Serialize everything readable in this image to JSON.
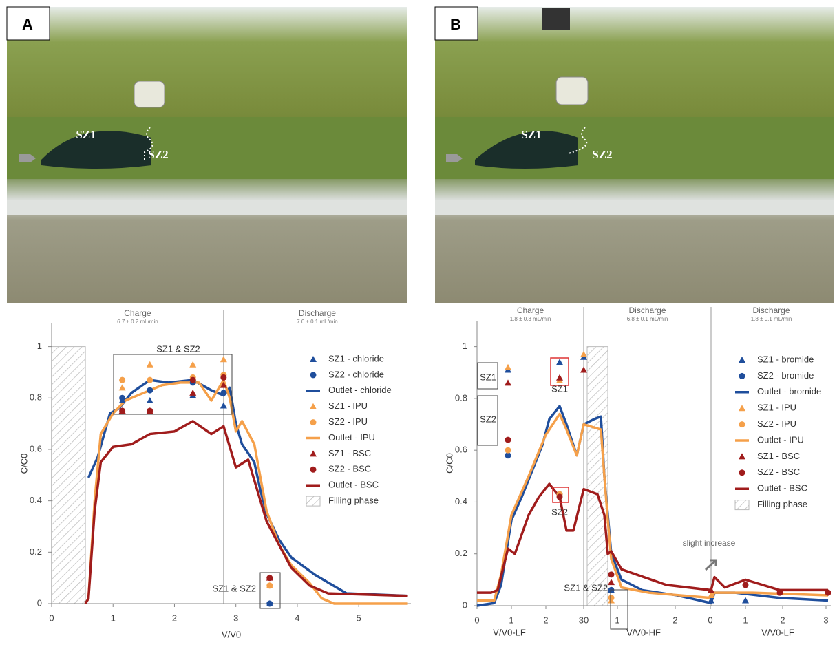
{
  "figure": {
    "panels": [
      {
        "label": "A",
        "zones": [
          "SZ1",
          "SZ2"
        ]
      },
      {
        "label": "B",
        "zones": [
          "SZ1",
          "SZ2"
        ]
      }
    ]
  },
  "chart_data": [
    {
      "type": "line",
      "xlabel": "V/V0",
      "ylabel": "C/C0",
      "xlim": [
        0,
        5.85
      ],
      "ylim": [
        0,
        1.09
      ],
      "xticks": [
        0,
        1,
        2,
        3,
        4,
        5
      ],
      "yticks": [
        0,
        0.2,
        0.4,
        0.6,
        0.8,
        1
      ],
      "phases": [
        {
          "name": "Charge",
          "rate": "6.7 ± 0.2 mL/min",
          "range": [
            0,
            2.8
          ]
        },
        {
          "name": "Discharge",
          "rate": "7.0 ± 0.1 mL/min",
          "range": [
            2.8,
            5.85
          ]
        }
      ],
      "filling_phase": [
        0,
        0.55
      ],
      "filling_label": "Filling phase",
      "annotations": [
        "SZ1 & SZ2",
        "SZ1 & SZ2"
      ],
      "series": [
        {
          "name": "SZ1 - chloride",
          "color": "#1f4e9c",
          "marker": "triangle",
          "x": [
            1.15,
            1.6,
            2.3,
            2.8,
            3.55
          ],
          "values": [
            0.79,
            0.79,
            0.81,
            0.77,
            0
          ]
        },
        {
          "name": "SZ2 - chloride",
          "color": "#1f4e9c",
          "marker": "circle",
          "x": [
            1.15,
            1.6,
            2.3,
            2.8,
            3.55
          ],
          "values": [
            0.8,
            0.83,
            0.86,
            0.82,
            0
          ]
        },
        {
          "name": "Outlet - chloride",
          "color": "#1f4e9c",
          "marker": "line",
          "x": [
            0.6,
            0.75,
            0.95,
            1.1,
            1.3,
            1.6,
            1.9,
            2.3,
            2.6,
            2.8,
            2.9,
            3.0,
            3.1,
            3.3,
            3.4,
            3.5,
            3.7,
            3.9,
            4.3,
            4.8,
            5.8
          ],
          "values": [
            0.49,
            0.57,
            0.74,
            0.76,
            0.82,
            0.87,
            0.86,
            0.87,
            0.83,
            0.81,
            0.84,
            0.7,
            0.62,
            0.55,
            0.44,
            0.35,
            0.25,
            0.18,
            0.11,
            0.04,
            0.03
          ]
        },
        {
          "name": "SZ1 - IPU",
          "color": "#f5a04a",
          "marker": "triangle",
          "x": [
            1.15,
            1.6,
            2.3,
            2.8,
            3.55
          ],
          "values": [
            0.84,
            0.93,
            0.93,
            0.95,
            0.07
          ]
        },
        {
          "name": "SZ2 - IPU",
          "color": "#f5a04a",
          "marker": "circle",
          "x": [
            1.15,
            1.6,
            2.3,
            2.8,
            3.55
          ],
          "values": [
            0.87,
            0.87,
            0.88,
            0.89,
            0.07
          ]
        },
        {
          "name": "Outlet - IPU",
          "color": "#f5a04a",
          "marker": "line",
          "x": [
            0.55,
            0.6,
            0.7,
            0.8,
            1.0,
            1.2,
            1.5,
            1.8,
            2.1,
            2.4,
            2.6,
            2.8,
            2.9,
            3.0,
            3.1,
            3.3,
            3.5,
            3.7,
            3.9,
            4.2,
            4.4,
            4.6,
            5.8
          ],
          "values": [
            0,
            0.02,
            0.4,
            0.66,
            0.74,
            0.79,
            0.82,
            0.85,
            0.86,
            0.86,
            0.79,
            0.87,
            0.8,
            0.67,
            0.71,
            0.62,
            0.36,
            0.23,
            0.15,
            0.08,
            0.02,
            0,
            0
          ]
        },
        {
          "name": "SZ1 - BSC",
          "color": "#a01c1c",
          "marker": "triangle",
          "x": [
            1.15,
            1.6,
            2.3,
            2.8,
            3.55
          ],
          "values": [
            0.75,
            0.75,
            0.82,
            0.85,
            0.1
          ]
        },
        {
          "name": "SZ2 - BSC",
          "color": "#a01c1c",
          "marker": "circle",
          "x": [
            1.15,
            1.6,
            2.3,
            2.8,
            3.55
          ],
          "values": [
            0.75,
            0.75,
            0.87,
            0.88,
            0.1
          ]
        },
        {
          "name": "Outlet - BSC",
          "color": "#a01c1c",
          "marker": "line",
          "x": [
            0.55,
            0.6,
            0.7,
            0.8,
            1.0,
            1.3,
            1.6,
            2.0,
            2.3,
            2.6,
            2.8,
            3.0,
            3.2,
            3.3,
            3.5,
            3.7,
            3.9,
            4.2,
            4.5,
            5.8
          ],
          "values": [
            0,
            0.02,
            0.36,
            0.55,
            0.61,
            0.62,
            0.66,
            0.67,
            0.71,
            0.66,
            0.69,
            0.53,
            0.56,
            0.48,
            0.32,
            0.23,
            0.14,
            0.07,
            0.04,
            0.03
          ]
        }
      ]
    },
    {
      "type": "line",
      "xlabels": [
        "V/V0-LF",
        "V/V0-HF",
        "V/V0-LF"
      ],
      "ylabel": "C/C0",
      "xlim": [
        0,
        10.3
      ],
      "ylim": [
        0,
        1.1
      ],
      "xticks": [
        0,
        1,
        2,
        {
          "value": 3.1,
          "label": "30"
        },
        {
          "value": 4.08,
          "label": "1"
        },
        {
          "value": 5.76,
          "label": "2"
        },
        {
          "value": 6.78,
          "label": "0"
        },
        {
          "value": 7.8,
          "label": "1"
        },
        {
          "value": 8.88,
          "label": "2"
        },
        {
          "value": 10.14,
          "label": "3"
        }
      ],
      "yticks": [
        0,
        0.2,
        0.4,
        0.6,
        0.8,
        1
      ],
      "phases": [
        {
          "name": "Charge",
          "rate": "1.8 ± 0.3 mL/min",
          "range": [
            0,
            3.1
          ]
        },
        {
          "name": "Discharge",
          "rate": "6.8 ± 0.1 mL/min",
          "range": [
            3.1,
            6.8
          ]
        },
        {
          "name": "Discharge",
          "rate": "1.8 ± 0.1 mL/min",
          "range": [
            6.8,
            10.3
          ]
        }
      ],
      "filling_phase": [
        3.2,
        3.8
      ],
      "filling_label": "Filling phase",
      "annotations": [
        "SZ1",
        "SZ2",
        "SZ1",
        "SZ2",
        "SZ1 & SZ2",
        "slight increase"
      ],
      "series": [
        {
          "name": "SZ1 - bromide",
          "color": "#1f4e9c",
          "marker": "triangle",
          "x": [
            0.9,
            2.4,
            3.1,
            3.9,
            6.8,
            7.8
          ],
          "values": [
            0.91,
            0.94,
            0.96,
            0.06,
            0.02,
            0.02
          ]
        },
        {
          "name": "SZ2 - bromide",
          "color": "#1f4e9c",
          "marker": "circle",
          "x": [
            0.9,
            2.4,
            3.9
          ],
          "values": [
            0.58,
            0.43,
            0.06
          ]
        },
        {
          "name": "Outlet - bromide",
          "color": "#1f4e9c",
          "marker": "line",
          "x": [
            0,
            0.5,
            0.7,
            1.0,
            1.3,
            1.6,
            1.9,
            2.1,
            2.4,
            2.6,
            2.8,
            2.9,
            3.1,
            3.4,
            3.6,
            3.7,
            3.8,
            3.9,
            4.2,
            4.8,
            5.8,
            6.8,
            6.9,
            7.5,
            8.8,
            10.2
          ],
          "values": [
            0,
            0.01,
            0.08,
            0.33,
            0.42,
            0.52,
            0.62,
            0.72,
            0.77,
            0.7,
            0.62,
            0.58,
            0.7,
            0.72,
            0.73,
            0.5,
            0.35,
            0.2,
            0.1,
            0.06,
            0.04,
            0.01,
            0.05,
            0.05,
            0.03,
            0.02
          ]
        },
        {
          "name": "SZ1 - IPU",
          "color": "#f5a04a",
          "marker": "triangle",
          "x": [
            0.9,
            2.4,
            3.1,
            3.9,
            6.8
          ],
          "values": [
            0.92,
            0.87,
            0.97,
            0.02,
            0.04
          ]
        },
        {
          "name": "SZ2 - IPU",
          "color": "#f5a04a",
          "marker": "circle",
          "x": [
            0.9,
            2.4,
            3.9
          ],
          "values": [
            0.6,
            0.43,
            0.03
          ]
        },
        {
          "name": "Outlet - IPU",
          "color": "#f5a04a",
          "marker": "line",
          "x": [
            0,
            0.5,
            0.7,
            1.0,
            1.5,
            2.0,
            2.4,
            2.6,
            2.9,
            3.1,
            3.6,
            3.7,
            3.8,
            3.9,
            4.2,
            5.0,
            6.8,
            6.9,
            8.0,
            10.2
          ],
          "values": [
            0.02,
            0.02,
            0.12,
            0.35,
            0.5,
            0.66,
            0.74,
            0.68,
            0.58,
            0.7,
            0.68,
            0.5,
            0.33,
            0.18,
            0.07,
            0.05,
            0.03,
            0.05,
            0.05,
            0.04
          ]
        },
        {
          "name": "SZ1 - BSC",
          "color": "#a01c1c",
          "marker": "triangle",
          "x": [
            0.9,
            2.4,
            3.1,
            3.9,
            6.8
          ],
          "values": [
            0.86,
            0.88,
            0.91,
            0.09,
            0.06
          ]
        },
        {
          "name": "SZ2 - BSC",
          "color": "#a01c1c",
          "marker": "circle",
          "x": [
            0.9,
            2.4,
            3.9,
            7.8,
            8.8,
            10.2
          ],
          "values": [
            0.64,
            0.42,
            0.12,
            0.08,
            0.05,
            0.05
          ]
        },
        {
          "name": "Outlet - BSC",
          "color": "#a01c1c",
          "marker": "line",
          "x": [
            0,
            0.4,
            0.6,
            0.9,
            1.1,
            1.5,
            1.8,
            2.1,
            2.4,
            2.6,
            2.8,
            3.1,
            3.5,
            3.7,
            3.8,
            3.9,
            4.2,
            5.5,
            6.8,
            6.9,
            7.2,
            7.8,
            8.8,
            10.2
          ],
          "values": [
            0.05,
            0.05,
            0.06,
            0.22,
            0.2,
            0.35,
            0.42,
            0.47,
            0.42,
            0.29,
            0.29,
            0.45,
            0.43,
            0.35,
            0.2,
            0.21,
            0.14,
            0.08,
            0.06,
            0.11,
            0.07,
            0.1,
            0.06,
            0.06
          ]
        }
      ]
    }
  ]
}
